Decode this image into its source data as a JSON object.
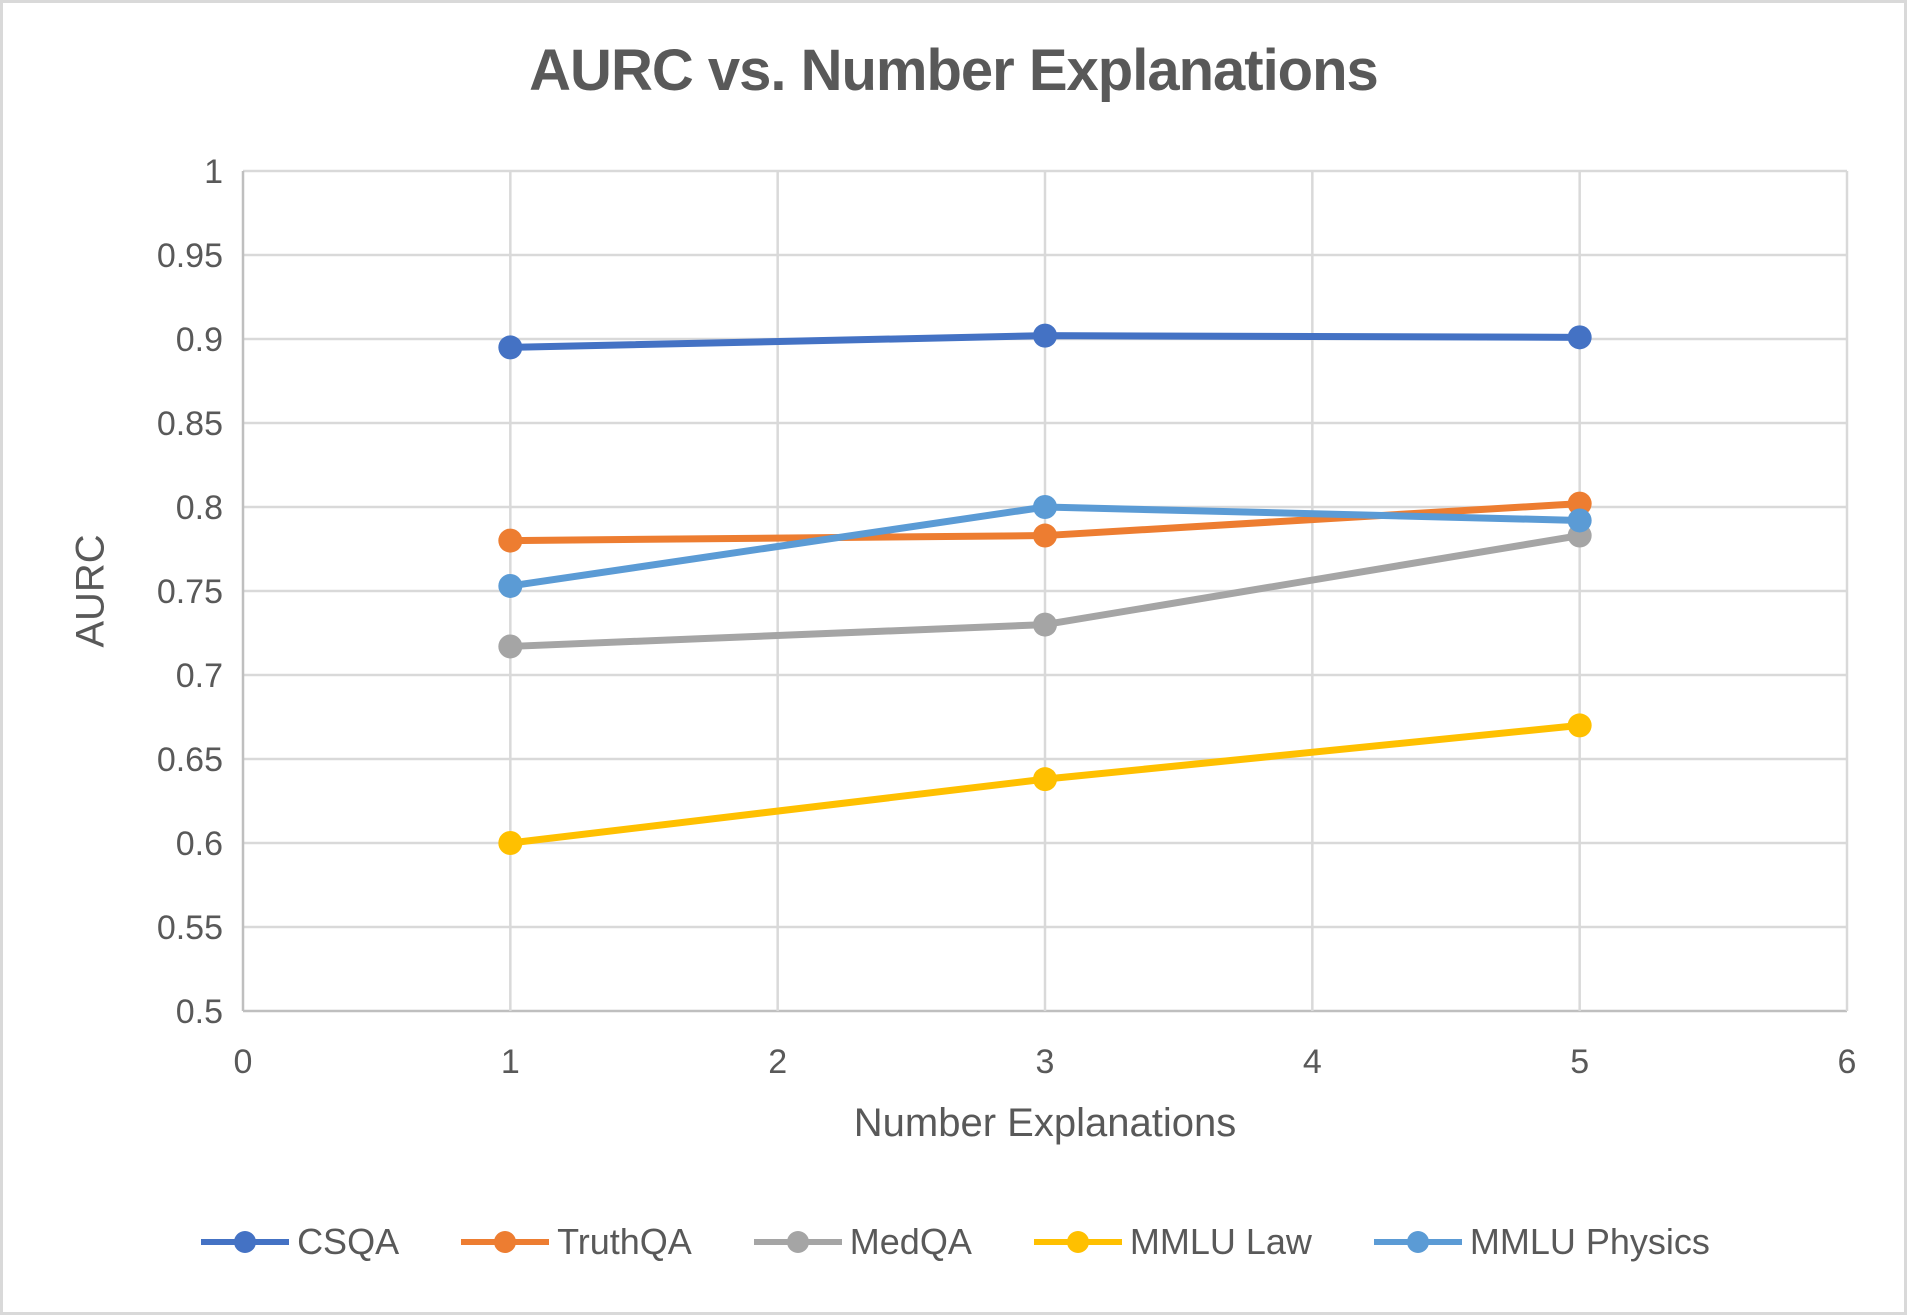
{
  "chart_data": {
    "type": "line",
    "title": "AURC vs. Number Explanations",
    "xlabel": "Number Explanations",
    "ylabel": "AURC",
    "x": [
      1,
      3,
      5
    ],
    "xlim": [
      0,
      6
    ],
    "ylim": [
      0.5,
      1.0
    ],
    "xticks": [
      0,
      1,
      2,
      3,
      4,
      5,
      6
    ],
    "yticks": [
      1,
      0.95,
      0.9,
      0.85,
      0.8,
      0.75,
      0.7,
      0.65,
      0.6,
      0.55,
      0.5
    ],
    "grid": true,
    "legend_position": "bottom",
    "series": [
      {
        "name": "CSQA",
        "color": "#4472C4",
        "values": [
          0.895,
          0.902,
          0.901
        ]
      },
      {
        "name": "TruthQA",
        "color": "#ED7D31",
        "values": [
          0.78,
          0.783,
          0.802
        ]
      },
      {
        "name": "MedQA",
        "color": "#A5A5A5",
        "values": [
          0.717,
          0.73,
          0.783
        ]
      },
      {
        "name": "MMLU Law",
        "color": "#FFC000",
        "values": [
          0.6,
          0.638,
          0.67
        ]
      },
      {
        "name": "MMLU Physics",
        "color": "#5B9BD5",
        "values": [
          0.753,
          0.8,
          0.792
        ]
      }
    ],
    "style": {
      "gridline_color": "#D9D9D9",
      "axis_line_color": "#BFBFBF",
      "text_color": "#595959",
      "background": "#FFFFFF",
      "border_color": "#D9D9D9"
    }
  }
}
